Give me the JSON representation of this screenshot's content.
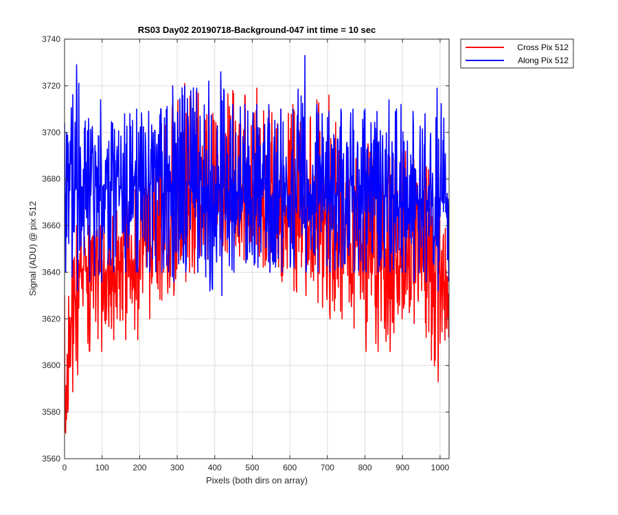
{
  "chart_data": {
    "type": "line",
    "title": "RS03 Day02 20190718-Background-047 int time = 10 sec",
    "xlabel": "Pixels (both dirs on array)",
    "ylabel": "Signal (ADU) @ pix 512",
    "xlim": [
      0,
      1024
    ],
    "ylim": [
      3560,
      3740
    ],
    "xticks": [
      0,
      100,
      200,
      300,
      400,
      500,
      600,
      700,
      800,
      900,
      1000
    ],
    "yticks": [
      3560,
      3580,
      3600,
      3620,
      3640,
      3660,
      3680,
      3700,
      3720,
      3740
    ],
    "grid": true,
    "legend_position": "outside top-right",
    "x": [
      0,
      32,
      64,
      96,
      128,
      160,
      192,
      224,
      256,
      288,
      320,
      352,
      384,
      416,
      448,
      480,
      512,
      544,
      576,
      608,
      640,
      672,
      704,
      736,
      768,
      800,
      832,
      864,
      896,
      928,
      960,
      992,
      1023
    ],
    "series": [
      {
        "name": "Cross Pix 512",
        "color": "#ff0000",
        "values": [
          3571,
          3640,
          3642,
          3640,
          3641,
          3644,
          3646,
          3650,
          3657,
          3663,
          3667,
          3668,
          3669,
          3670,
          3670,
          3671,
          3671,
          3669,
          3668,
          3667,
          3665,
          3662,
          3660,
          3658,
          3655,
          3652,
          3648,
          3647,
          3646,
          3645,
          3645,
          3645,
          3630
        ],
        "y_low": [
          3571,
          3596,
          3606,
          3606,
          3611,
          3611,
          3611,
          3620,
          3628,
          3630,
          3636,
          3640,
          3642,
          3644,
          3646,
          3645,
          3644,
          3640,
          3636,
          3632,
          3630,
          3627,
          3620,
          3620,
          3616,
          3606,
          3606,
          3606,
          3620,
          3618,
          3612,
          3593,
          3612
        ],
        "y_high": [
          3630,
          3660,
          3660,
          3660,
          3664,
          3672,
          3682,
          3690,
          3704,
          3712,
          3721,
          3718,
          3714,
          3722,
          3718,
          3716,
          3719,
          3710,
          3710,
          3712,
          3720,
          3714,
          3716,
          3700,
          3700,
          3698,
          3700,
          3690,
          3694,
          3690,
          3686,
          3690,
          3680
        ]
      },
      {
        "name": "Along Pix 512",
        "color": "#0000ff",
        "values": [
          3672,
          3676,
          3678,
          3676,
          3676,
          3676,
          3675,
          3676,
          3676,
          3676,
          3675,
          3675,
          3676,
          3675,
          3675,
          3674,
          3673,
          3672,
          3672,
          3672,
          3672,
          3673,
          3673,
          3673,
          3673,
          3673,
          3673,
          3673,
          3673,
          3673,
          3673,
          3672,
          3672
        ],
        "y_low": [
          3640,
          3632,
          3636,
          3636,
          3640,
          3640,
          3640,
          3640,
          3640,
          3636,
          3640,
          3640,
          3632,
          3630,
          3640,
          3644,
          3642,
          3640,
          3640,
          3642,
          3640,
          3640,
          3640,
          3642,
          3640,
          3640,
          3640,
          3640,
          3640,
          3636,
          3636,
          3632,
          3636
        ],
        "y_high": [
          3704,
          3729,
          3706,
          3714,
          3704,
          3708,
          3710,
          3709,
          3710,
          3720,
          3720,
          3719,
          3722,
          3726,
          3712,
          3712,
          3712,
          3712,
          3710,
          3710,
          3733,
          3712,
          3709,
          3710,
          3710,
          3710,
          3709,
          3714,
          3712,
          3709,
          3708,
          3719,
          3702
        ]
      }
    ]
  }
}
